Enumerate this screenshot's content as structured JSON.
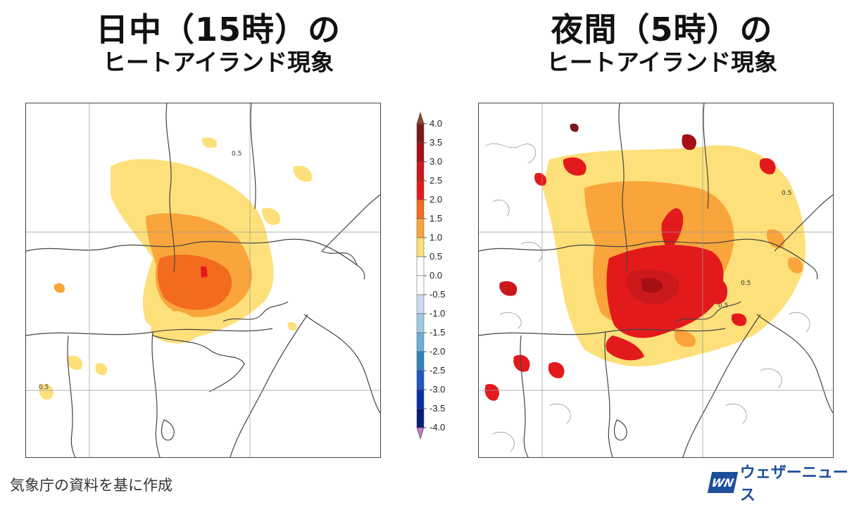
{
  "titles": {
    "left_line1": "日中（15時）の",
    "left_line2": "ヒートアイランド現象",
    "right_line1": "夜間（5時）の",
    "right_line2": "ヒートアイランド現象"
  },
  "colorbar": {
    "labels": [
      "4.0",
      "3.5",
      "3.0",
      "2.5",
      "2.0",
      "1.5",
      "1.0",
      "0.5",
      "0.0",
      "-0.5",
      "-1.0",
      "-1.5",
      "-2.0",
      "-2.5",
      "-3.0",
      "-3.5",
      "-4.0"
    ],
    "colors": [
      "#7a1a1a",
      "#a50f15",
      "#cb181d",
      "#e31a1c",
      "#f26b1e",
      "#f9a53b",
      "#fde07a",
      "#ffffff",
      "#ffffff",
      "#c6dbef",
      "#9ecae1",
      "#6baed6",
      "#3182bd",
      "#1f57c4",
      "#0b2fa8",
      "#081d7a"
    ],
    "top_arrow_color": "#8c4a2a",
    "bottom_arrow_color": "#c779c9"
  },
  "contour_labels": {
    "left": [
      "0.5",
      "0.5"
    ],
    "right": [
      "0.5",
      "0.5",
      "0.5"
    ]
  },
  "footer": {
    "source": "気象庁の資料を基に作成",
    "brand_logo": "WN",
    "brand_name": "ウェザーニュース"
  }
}
